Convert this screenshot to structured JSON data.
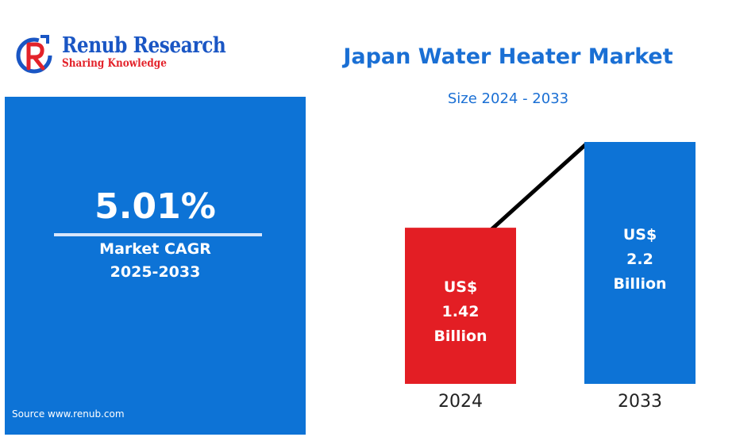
{
  "brand": {
    "name": "Renub Research",
    "tagline": "Sharing Knowledge",
    "colors": {
      "blue": "#1a56c4",
      "red": "#e3222a"
    }
  },
  "summary": {
    "cagr_value": "5.01%",
    "cagr_label": "Market CAGR",
    "cagr_period": "2025-2033",
    "source": "Source  www.renub.com",
    "panel_color": "#0d73d6"
  },
  "chart_data": {
    "type": "bar",
    "title": "Japan Water Heater Market",
    "subtitle": "Size 2024 - 2033",
    "categories": [
      "2024",
      "2033"
    ],
    "values": [
      1.42,
      2.2
    ],
    "ylim": [
      0,
      2.2
    ],
    "bar_labels": [
      [
        "US$",
        "1.42",
        "Billion"
      ],
      [
        "US$",
        "2.2",
        "Billion"
      ]
    ],
    "bar_colors": [
      "#e31e24",
      "#0d73d6"
    ],
    "trend_line": true,
    "grid": false
  }
}
